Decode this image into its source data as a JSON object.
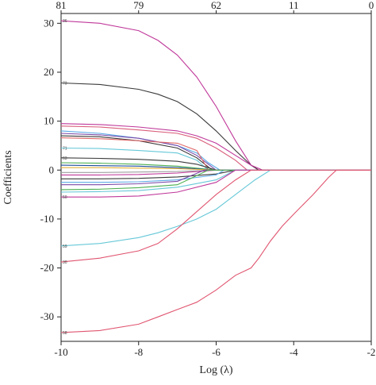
{
  "chart_data": {
    "type": "line",
    "xlabel": "Log (λ)",
    "ylabel": "Coefficients",
    "xlim": [
      -10,
      -2
    ],
    "ylim": [
      -35,
      32
    ],
    "x_ticks": [
      -10,
      -8,
      -6,
      -4,
      -2
    ],
    "y_ticks": [
      -30,
      -20,
      -10,
      0,
      10,
      20,
      30
    ],
    "top_axis": {
      "positions": [
        -10,
        -8,
        -6,
        -4,
        -2
      ],
      "labels": [
        "81",
        "79",
        "62",
        "11",
        "0"
      ]
    },
    "grid": false,
    "legend": "none",
    "series": [
      {
        "name": "36",
        "color": "#c0389a",
        "x": [
          -10,
          -9,
          -8,
          -7.5,
          -7,
          -6.5,
          -6,
          -5.5,
          -5.1,
          -4.9
        ],
        "y": [
          30.5,
          30.0,
          28.5,
          26.5,
          23.5,
          19,
          13,
          6,
          1,
          0
        ]
      },
      {
        "name": "73",
        "color": "#3a3a3a",
        "x": [
          -10,
          -9,
          -8,
          -7.5,
          -7,
          -6.5,
          -6,
          -5.5,
          -5.1,
          -4.9
        ],
        "y": [
          17.8,
          17.5,
          16.5,
          15.5,
          14,
          11.5,
          8,
          4,
          1,
          0
        ]
      },
      {
        "name": "",
        "color": "#c0389a",
        "x": [
          -10,
          -9,
          -8,
          -7,
          -6.5,
          -6,
          -5.5,
          -5.1,
          -4.8
        ],
        "y": [
          9.5,
          9.3,
          8.8,
          8,
          7,
          5.5,
          3,
          1,
          0
        ]
      },
      {
        "name": "",
        "color": "#d95d7a",
        "x": [
          -10,
          -9,
          -8,
          -7,
          -6.5,
          -6,
          -5.5,
          -5.2
        ],
        "y": [
          9.0,
          8.8,
          8.2,
          7.5,
          6.5,
          4.5,
          2,
          0
        ]
      },
      {
        "name": "",
        "color": "#5aa9e6",
        "x": [
          -10,
          -9,
          -8,
          -7,
          -6.5,
          -6.2,
          -5.9
        ],
        "y": [
          8.0,
          7.5,
          6.5,
          5,
          3.5,
          1.5,
          0
        ]
      },
      {
        "name": "",
        "color": "#7b4aa8",
        "x": [
          -10,
          -9,
          -8,
          -7,
          -6.5,
          -6
        ],
        "y": [
          7.5,
          7.2,
          6.5,
          5,
          3,
          0
        ]
      },
      {
        "name": "",
        "color": "#3a3a3a",
        "x": [
          -10,
          -9,
          -8,
          -7,
          -6.5,
          -6.1
        ],
        "y": [
          7.0,
          6.8,
          6.0,
          4.5,
          2.5,
          0
        ]
      },
      {
        "name": "",
        "color": "#e06b6b",
        "x": [
          -10,
          -9,
          -8,
          -7,
          -6.5,
          -6.2
        ],
        "y": [
          6.6,
          6.4,
          6.0,
          5.5,
          4,
          0
        ]
      },
      {
        "name": "71",
        "color": "#66c8d8",
        "x": [
          -10,
          -9,
          -8,
          -7,
          -6.5,
          -6.2
        ],
        "y": [
          4.5,
          4.4,
          4.0,
          3.5,
          2,
          0
        ]
      },
      {
        "name": "63",
        "color": "#3a3a3a",
        "x": [
          -10,
          -9,
          -8,
          -7,
          -6.5,
          -6
        ],
        "y": [
          2.5,
          2.4,
          2.2,
          1.8,
          1.2,
          0
        ]
      },
      {
        "name": "",
        "color": "#4caf50",
        "x": [
          -10,
          -9,
          -8,
          -7,
          -6
        ],
        "y": [
          1.5,
          1.4,
          1.2,
          0.8,
          0
        ]
      },
      {
        "name": "",
        "color": "#1f4e9c",
        "x": [
          -10,
          -9,
          -8,
          -7,
          -6
        ],
        "y": [
          1.0,
          0.9,
          0.8,
          0.5,
          0
        ]
      },
      {
        "name": "",
        "color": "#e3b23c",
        "x": [
          -10,
          -9,
          -8,
          -7,
          -6
        ],
        "y": [
          0.5,
          0.5,
          0.4,
          0.3,
          0
        ]
      },
      {
        "name": "",
        "color": "#9e9e9e",
        "x": [
          -10,
          -9,
          -8,
          -7,
          -6
        ],
        "y": [
          -0.5,
          -0.5,
          -0.4,
          -0.3,
          0
        ]
      },
      {
        "name": "",
        "color": "#c0389a",
        "x": [
          -10,
          -9,
          -8,
          -7,
          -6
        ],
        "y": [
          -1.0,
          -1.0,
          -0.9,
          -0.6,
          0
        ]
      },
      {
        "name": "",
        "color": "#3a3a3a",
        "x": [
          -10,
          -9,
          -8,
          -7,
          -6,
          -5.5
        ],
        "y": [
          -1.8,
          -1.8,
          -1.7,
          -1.4,
          -0.8,
          0
        ]
      },
      {
        "name": "",
        "color": "#5aa9e6",
        "x": [
          -10,
          -9,
          -8,
          -7,
          -6,
          -5.8
        ],
        "y": [
          -2.5,
          -2.5,
          -2.4,
          -2.0,
          -1.0,
          0
        ]
      },
      {
        "name": "",
        "color": "#7b4aa8",
        "x": [
          -10,
          -9,
          -8,
          -7,
          -6.3
        ],
        "y": [
          -3.0,
          -3.0,
          -2.8,
          -2.3,
          0
        ]
      },
      {
        "name": "",
        "color": "#4caf50",
        "x": [
          -10,
          -9,
          -8,
          -7,
          -6.2
        ],
        "y": [
          -4.0,
          -3.9,
          -3.6,
          -3.0,
          0
        ]
      },
      {
        "name": "",
        "color": "#66c8d8",
        "x": [
          -10,
          -9,
          -8,
          -7,
          -6,
          -5.5
        ],
        "y": [
          -4.5,
          -4.4,
          -4.2,
          -3.5,
          -2.0,
          0
        ]
      },
      {
        "name": "50",
        "color": "#c0389a",
        "x": [
          -10,
          -9,
          -8,
          -7,
          -6,
          -5.5
        ],
        "y": [
          -5.5,
          -5.5,
          -5.3,
          -4.5,
          -2.5,
          0
        ]
      },
      {
        "name": "59",
        "color": "#66c8d8",
        "x": [
          -10,
          -9,
          -8,
          -7.5,
          -7,
          -6.5,
          -6,
          -5.5,
          -5,
          -4.6
        ],
        "y": [
          -15.5,
          -15,
          -13.8,
          -12.8,
          -11.5,
          -10,
          -8,
          -5,
          -2,
          0
        ]
      },
      {
        "name": "30",
        "color": "#e05570",
        "x": [
          -10,
          -9,
          -8,
          -7.5,
          -7,
          -6.5,
          -6,
          -5.5,
          -5.1
        ],
        "y": [
          -18.8,
          -18,
          -16.5,
          -15,
          -12,
          -8.5,
          -5,
          -2,
          0
        ]
      },
      {
        "name": "58",
        "color": "#e05570",
        "x": [
          -10,
          -9,
          -8,
          -7.5,
          -7,
          -6.5,
          -6,
          -5.5,
          -5.1,
          -4.9,
          -4.6,
          -4.3,
          -4.0,
          -3.5,
          -3.1,
          -2.9
        ],
        "y": [
          -33.2,
          -32.8,
          -31.5,
          -30,
          -28.5,
          -27,
          -24.5,
          -21.5,
          -20,
          -18,
          -14.5,
          -11.5,
          -9,
          -5,
          -1.5,
          0
        ]
      }
    ]
  }
}
